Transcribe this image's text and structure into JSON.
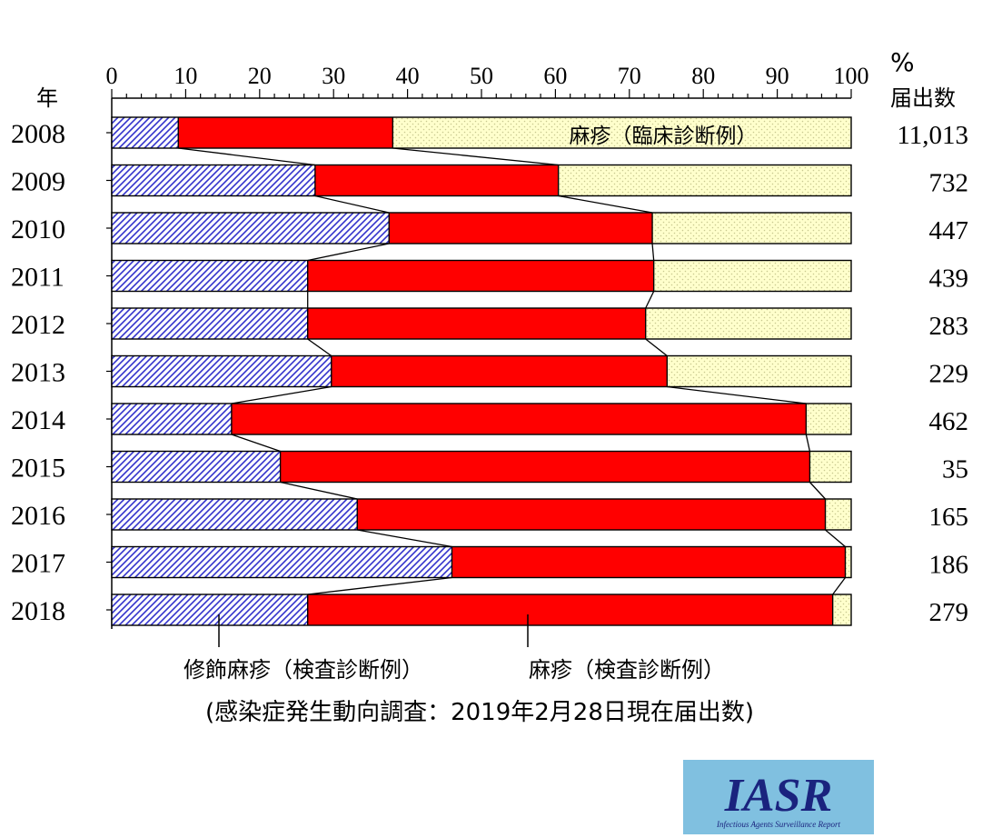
{
  "chart_data": {
    "type": "bar",
    "orientation": "horizontal-stacked-100",
    "x_unit_label": "%",
    "count_header": "届出数",
    "year_header": "年",
    "xlim": [
      0,
      100
    ],
    "x_ticks": [
      "0",
      "10",
      "20",
      "30",
      "40",
      "50",
      "60",
      "70",
      "80",
      "90",
      "100"
    ],
    "categories": [
      "2008",
      "2009",
      "2010",
      "2011",
      "2012",
      "2013",
      "2014",
      "2015",
      "2016",
      "2017",
      "2018"
    ],
    "counts": [
      "11,013",
      "732",
      "447",
      "439",
      "283",
      "229",
      "462",
      "35",
      "165",
      "186",
      "279"
    ],
    "series": [
      {
        "name": "修飾麻疹（検査診断例）",
        "values": [
          9.0,
          27.5,
          37.5,
          26.5,
          26.5,
          29.7,
          16.2,
          22.8,
          33.2,
          46.0,
          26.5
        ],
        "color": "#3333cc"
      },
      {
        "name": "麻疹（検査診断例）",
        "values": [
          29.0,
          32.9,
          35.6,
          46.8,
          45.7,
          45.4,
          77.7,
          71.6,
          63.3,
          53.2,
          71.0
        ],
        "color": "#ff0000"
      },
      {
        "name": "麻疹（臨床診断例）",
        "values": [
          62.0,
          39.6,
          26.9,
          26.7,
          27.8,
          24.9,
          6.1,
          5.6,
          3.5,
          0.8,
          2.5
        ],
        "color": "#ffffcc"
      }
    ],
    "footnote": "(感染症発生動向調査：2019年2月28日現在届出数)"
  },
  "logo": {
    "text": "IASR",
    "subtext": "Infectious Agents Surveillance Report",
    "bg_color": "#80c0e0",
    "text_color": "#1a237e"
  }
}
